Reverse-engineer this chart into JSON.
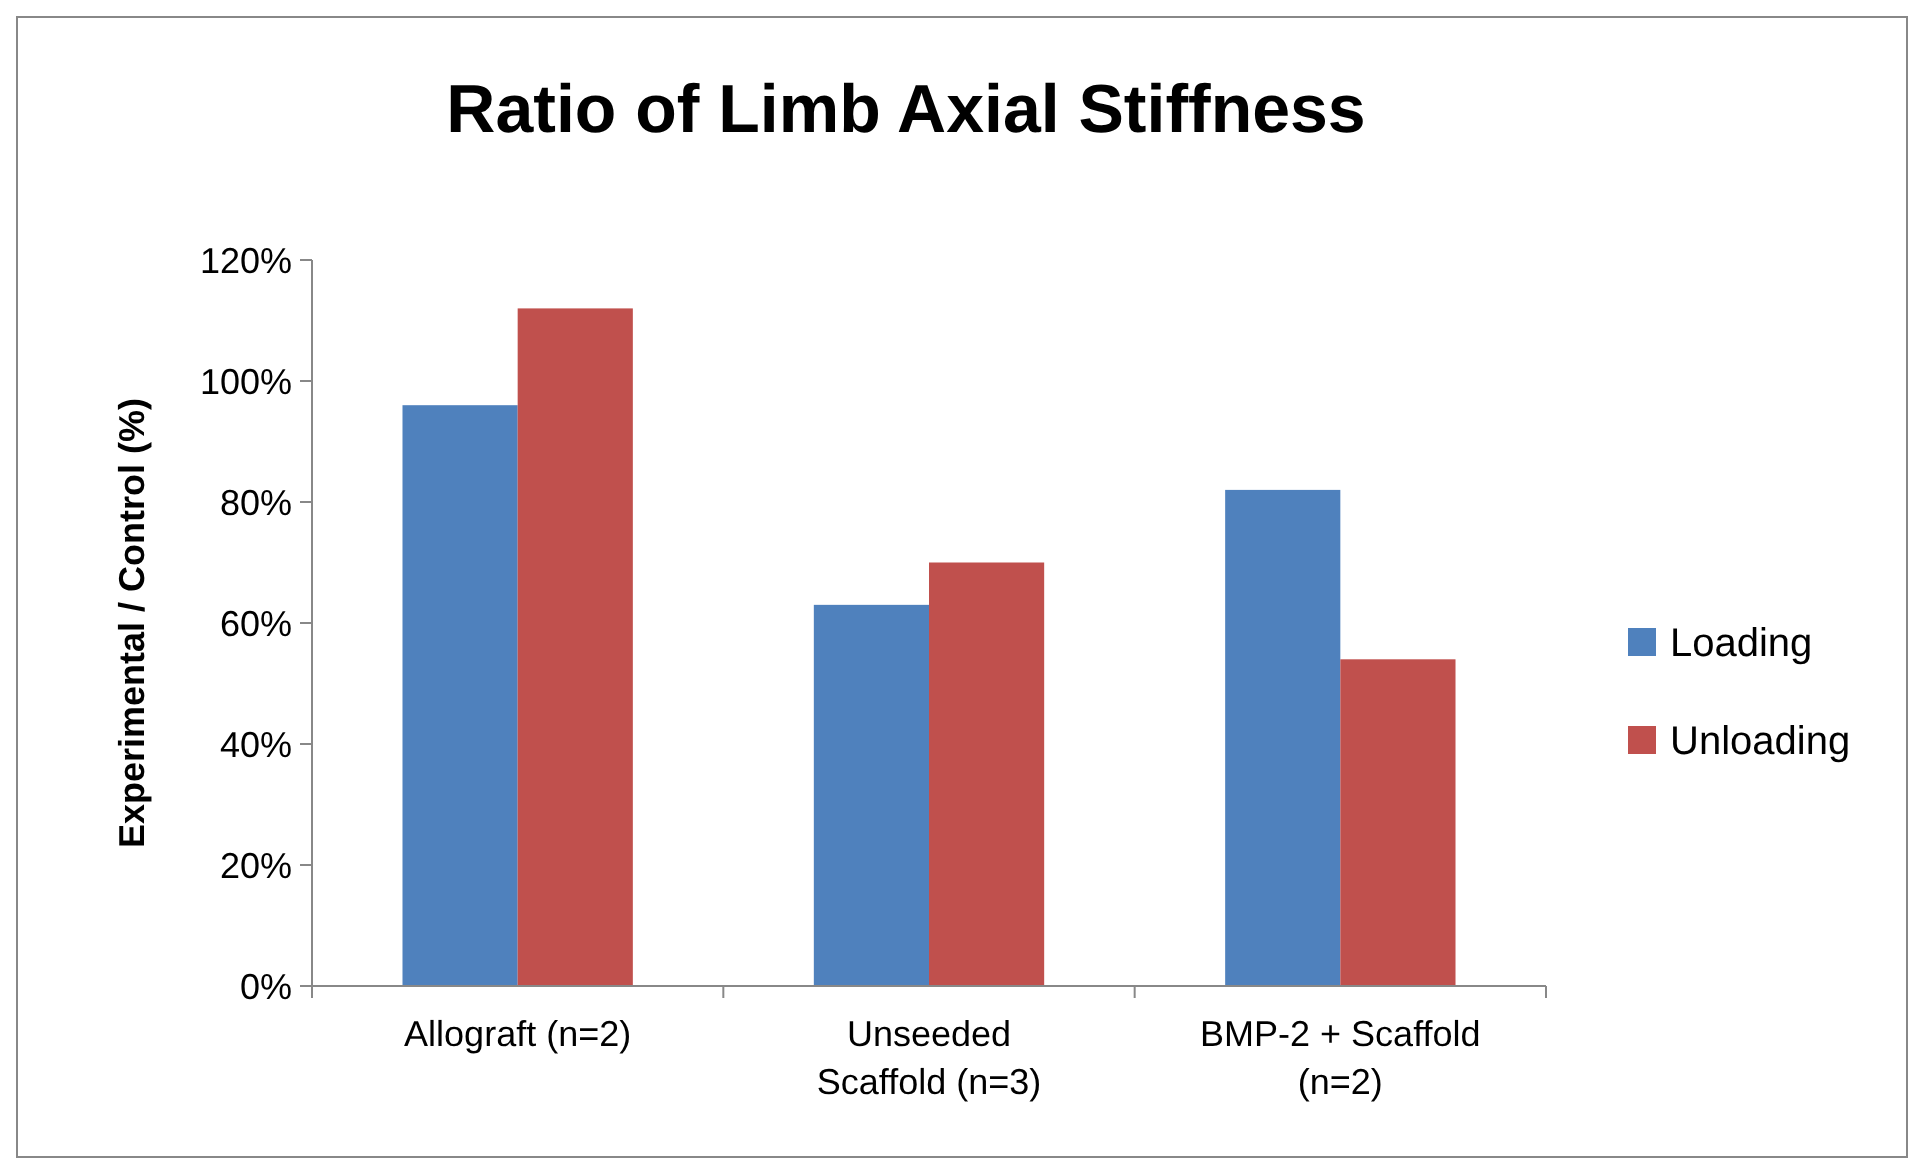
{
  "chart_data": {
    "type": "bar",
    "title": "Ratio of Limb  Axial Stiffness",
    "ylabel": "Experimental / Control (%)",
    "categories": [
      "Allograft (n=2)",
      "Unseeded\nScaffold (n=3)",
      "BMP-2 + Scaffold\n(n=2)"
    ],
    "series": [
      {
        "name": "Loading",
        "color": "#4f81bd",
        "values": [
          96,
          63,
          82
        ]
      },
      {
        "name": "Unloading",
        "color": "#c0504d",
        "values": [
          112,
          70,
          54
        ]
      }
    ],
    "ylim": [
      0,
      120
    ],
    "yticks": [
      {
        "value": 0,
        "label": "0%"
      },
      {
        "value": 20,
        "label": "20%"
      },
      {
        "value": 40,
        "label": "40%"
      },
      {
        "value": 60,
        "label": "60%"
      },
      {
        "value": 80,
        "label": "80%"
      },
      {
        "value": 100,
        "label": "100%"
      },
      {
        "value": 120,
        "label": "120%"
      }
    ],
    "legend": "right"
  }
}
